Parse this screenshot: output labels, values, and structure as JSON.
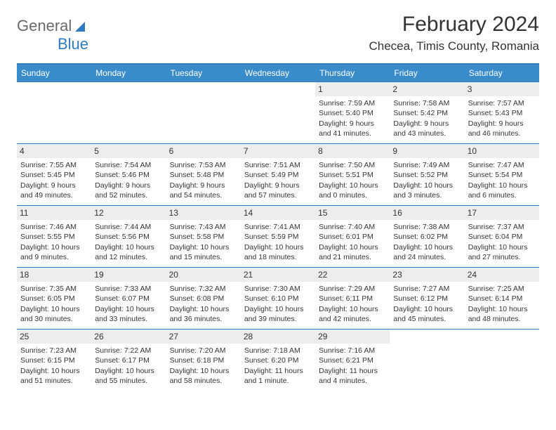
{
  "logo": {
    "part1": "General",
    "part2": "Blue"
  },
  "title": "February 2024",
  "location": "Checea, Timis County, Romania",
  "colors": {
    "header_bg": "#3a8bc9",
    "border": "#2f7bbf",
    "daynum_bg": "#eceeee",
    "text": "#333333",
    "logo_gray": "#6a6a6a",
    "logo_blue": "#2f7bbf"
  },
  "weekdays": [
    "Sunday",
    "Monday",
    "Tuesday",
    "Wednesday",
    "Thursday",
    "Friday",
    "Saturday"
  ],
  "weeks": [
    [
      null,
      null,
      null,
      null,
      {
        "n": "1",
        "sr": "Sunrise: 7:59 AM",
        "ss": "Sunset: 5:40 PM",
        "dl": "Daylight: 9 hours and 41 minutes."
      },
      {
        "n": "2",
        "sr": "Sunrise: 7:58 AM",
        "ss": "Sunset: 5:42 PM",
        "dl": "Daylight: 9 hours and 43 minutes."
      },
      {
        "n": "3",
        "sr": "Sunrise: 7:57 AM",
        "ss": "Sunset: 5:43 PM",
        "dl": "Daylight: 9 hours and 46 minutes."
      }
    ],
    [
      {
        "n": "4",
        "sr": "Sunrise: 7:55 AM",
        "ss": "Sunset: 5:45 PM",
        "dl": "Daylight: 9 hours and 49 minutes."
      },
      {
        "n": "5",
        "sr": "Sunrise: 7:54 AM",
        "ss": "Sunset: 5:46 PM",
        "dl": "Daylight: 9 hours and 52 minutes."
      },
      {
        "n": "6",
        "sr": "Sunrise: 7:53 AM",
        "ss": "Sunset: 5:48 PM",
        "dl": "Daylight: 9 hours and 54 minutes."
      },
      {
        "n": "7",
        "sr": "Sunrise: 7:51 AM",
        "ss": "Sunset: 5:49 PM",
        "dl": "Daylight: 9 hours and 57 minutes."
      },
      {
        "n": "8",
        "sr": "Sunrise: 7:50 AM",
        "ss": "Sunset: 5:51 PM",
        "dl": "Daylight: 10 hours and 0 minutes."
      },
      {
        "n": "9",
        "sr": "Sunrise: 7:49 AM",
        "ss": "Sunset: 5:52 PM",
        "dl": "Daylight: 10 hours and 3 minutes."
      },
      {
        "n": "10",
        "sr": "Sunrise: 7:47 AM",
        "ss": "Sunset: 5:54 PM",
        "dl": "Daylight: 10 hours and 6 minutes."
      }
    ],
    [
      {
        "n": "11",
        "sr": "Sunrise: 7:46 AM",
        "ss": "Sunset: 5:55 PM",
        "dl": "Daylight: 10 hours and 9 minutes."
      },
      {
        "n": "12",
        "sr": "Sunrise: 7:44 AM",
        "ss": "Sunset: 5:56 PM",
        "dl": "Daylight: 10 hours and 12 minutes."
      },
      {
        "n": "13",
        "sr": "Sunrise: 7:43 AM",
        "ss": "Sunset: 5:58 PM",
        "dl": "Daylight: 10 hours and 15 minutes."
      },
      {
        "n": "14",
        "sr": "Sunrise: 7:41 AM",
        "ss": "Sunset: 5:59 PM",
        "dl": "Daylight: 10 hours and 18 minutes."
      },
      {
        "n": "15",
        "sr": "Sunrise: 7:40 AM",
        "ss": "Sunset: 6:01 PM",
        "dl": "Daylight: 10 hours and 21 minutes."
      },
      {
        "n": "16",
        "sr": "Sunrise: 7:38 AM",
        "ss": "Sunset: 6:02 PM",
        "dl": "Daylight: 10 hours and 24 minutes."
      },
      {
        "n": "17",
        "sr": "Sunrise: 7:37 AM",
        "ss": "Sunset: 6:04 PM",
        "dl": "Daylight: 10 hours and 27 minutes."
      }
    ],
    [
      {
        "n": "18",
        "sr": "Sunrise: 7:35 AM",
        "ss": "Sunset: 6:05 PM",
        "dl": "Daylight: 10 hours and 30 minutes."
      },
      {
        "n": "19",
        "sr": "Sunrise: 7:33 AM",
        "ss": "Sunset: 6:07 PM",
        "dl": "Daylight: 10 hours and 33 minutes."
      },
      {
        "n": "20",
        "sr": "Sunrise: 7:32 AM",
        "ss": "Sunset: 6:08 PM",
        "dl": "Daylight: 10 hours and 36 minutes."
      },
      {
        "n": "21",
        "sr": "Sunrise: 7:30 AM",
        "ss": "Sunset: 6:10 PM",
        "dl": "Daylight: 10 hours and 39 minutes."
      },
      {
        "n": "22",
        "sr": "Sunrise: 7:29 AM",
        "ss": "Sunset: 6:11 PM",
        "dl": "Daylight: 10 hours and 42 minutes."
      },
      {
        "n": "23",
        "sr": "Sunrise: 7:27 AM",
        "ss": "Sunset: 6:12 PM",
        "dl": "Daylight: 10 hours and 45 minutes."
      },
      {
        "n": "24",
        "sr": "Sunrise: 7:25 AM",
        "ss": "Sunset: 6:14 PM",
        "dl": "Daylight: 10 hours and 48 minutes."
      }
    ],
    [
      {
        "n": "25",
        "sr": "Sunrise: 7:23 AM",
        "ss": "Sunset: 6:15 PM",
        "dl": "Daylight: 10 hours and 51 minutes."
      },
      {
        "n": "26",
        "sr": "Sunrise: 7:22 AM",
        "ss": "Sunset: 6:17 PM",
        "dl": "Daylight: 10 hours and 55 minutes."
      },
      {
        "n": "27",
        "sr": "Sunrise: 7:20 AM",
        "ss": "Sunset: 6:18 PM",
        "dl": "Daylight: 10 hours and 58 minutes."
      },
      {
        "n": "28",
        "sr": "Sunrise: 7:18 AM",
        "ss": "Sunset: 6:20 PM",
        "dl": "Daylight: 11 hours and 1 minute."
      },
      {
        "n": "29",
        "sr": "Sunrise: 7:16 AM",
        "ss": "Sunset: 6:21 PM",
        "dl": "Daylight: 11 hours and 4 minutes."
      },
      null,
      null
    ]
  ]
}
